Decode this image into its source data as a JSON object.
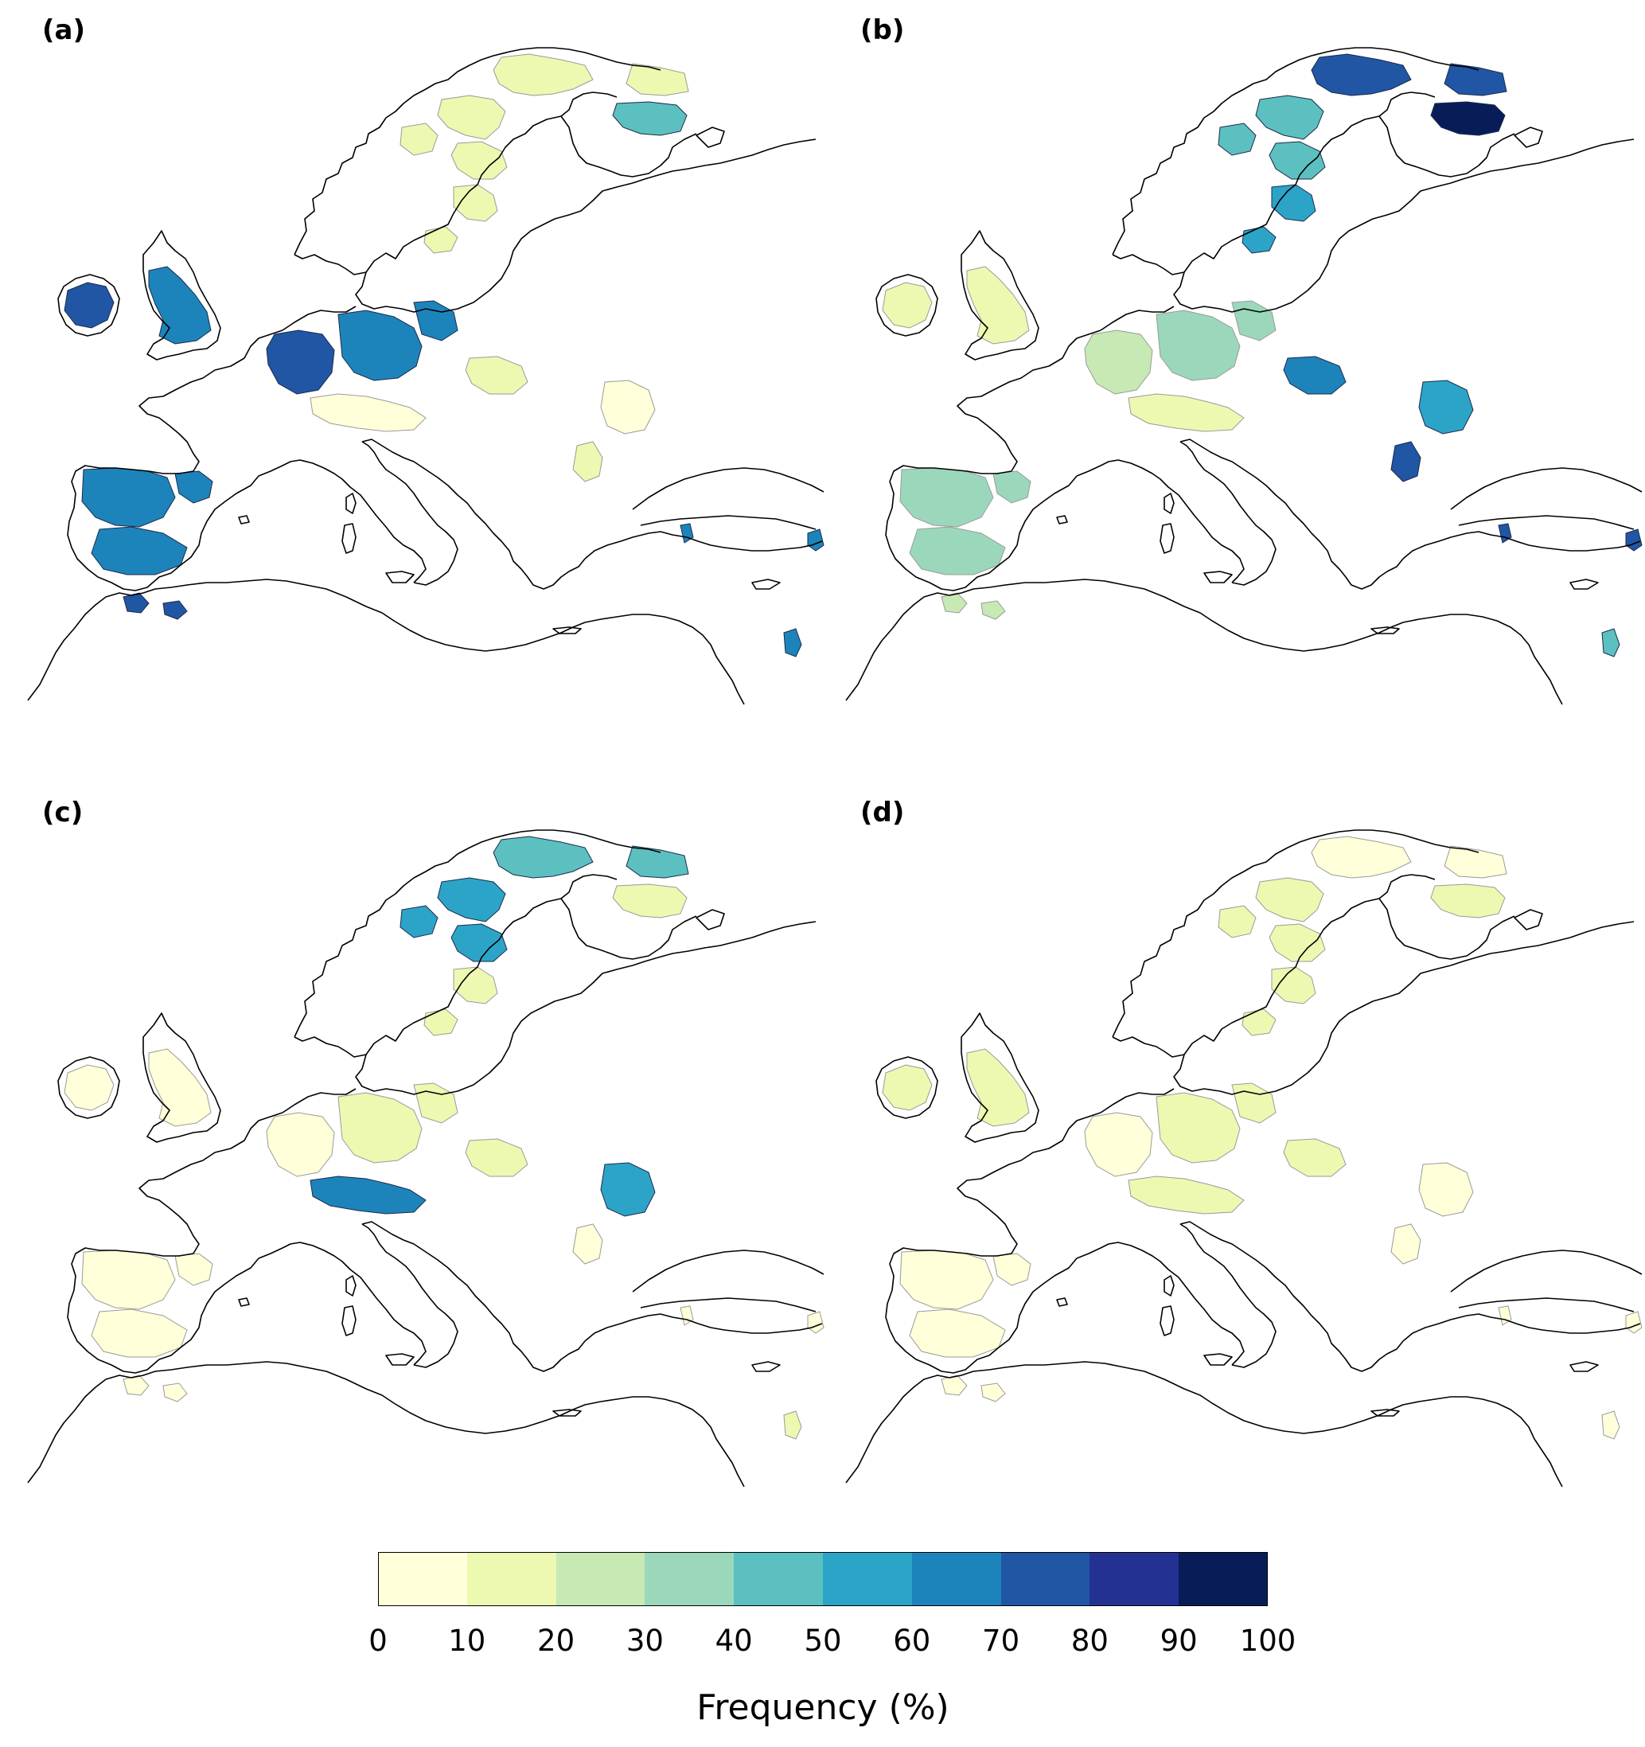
{
  "panels": [
    {
      "id": "a",
      "label": "(a)"
    },
    {
      "id": "b",
      "label": "(b)"
    },
    {
      "id": "c",
      "label": "(c)"
    },
    {
      "id": "d",
      "label": "(d)"
    }
  ],
  "colorbar": {
    "title": "Frequency (%)",
    "ticks": [
      "0",
      "10",
      "20",
      "30",
      "40",
      "50",
      "60",
      "70",
      "80",
      "90",
      "100"
    ],
    "colors": [
      "#ffffd9",
      "#edf8b1",
      "#c7e9b4",
      "#9bd8bb",
      "#5cc0c0",
      "#2ca4c8",
      "#1d84bb",
      "#2156a5",
      "#233193",
      "#081d58"
    ]
  },
  "regions": {
    "a": {
      "scand_n": 10,
      "scand_fin": 45,
      "scand_c": 15,
      "sweden_s": 18,
      "ireland": 75,
      "britain": 65,
      "france_n": 75,
      "germany": 60,
      "alps": 8,
      "poland": 12,
      "carpathian": 8,
      "danube": 18,
      "iberia": 62,
      "morocco": 75,
      "turkey": 65,
      "levant": 60
    },
    "b": {
      "scand_n": 72,
      "scand_fin": 92,
      "scand_c": 45,
      "sweden_s": 55,
      "ireland": 18,
      "britain": 18,
      "france_n": 22,
      "germany": 38,
      "alps": 15,
      "poland": 62,
      "carpathian": 55,
      "danube": 75,
      "iberia": 32,
      "morocco": 20,
      "turkey": 75,
      "levant": 45
    },
    "c": {
      "scand_n": 45,
      "scand_fin": 18,
      "scand_c": 50,
      "sweden_s": 15,
      "ireland": 8,
      "britain": 8,
      "france_n": 8,
      "germany": 15,
      "alps": 65,
      "poland": 18,
      "carpathian": 50,
      "danube": 8,
      "iberia": 8,
      "morocco": 8,
      "turkey": 8,
      "levant": 12
    },
    "d": {
      "scand_n": 8,
      "scand_fin": 15,
      "scand_c": 15,
      "sweden_s": 12,
      "ireland": 18,
      "britain": 15,
      "france_n": 8,
      "germany": 12,
      "alps": 18,
      "poland": 10,
      "carpathian": 8,
      "danube": 6,
      "iberia": 8,
      "morocco": 8,
      "turkey": 8,
      "levant": 8
    }
  }
}
